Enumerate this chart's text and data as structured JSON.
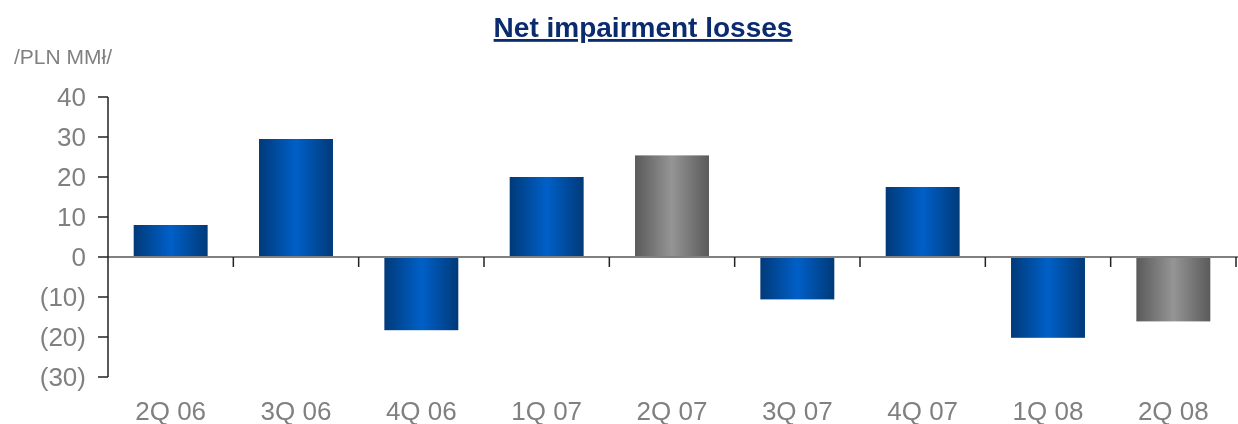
{
  "chart_data": {
    "type": "bar",
    "title": "Net impairment losses",
    "ylabel": "/PLN MMł/",
    "categories": [
      "2Q 06",
      "3Q 06",
      "4Q 06",
      "1Q 07",
      "2Q 07",
      "3Q 07",
      "4Q 07",
      "1Q 08",
      "2Q 08"
    ],
    "values": [
      8,
      29.5,
      -18.3,
      20,
      25.4,
      -10.6,
      17.5,
      -20.2,
      -16.1
    ],
    "colors": [
      "#0060c8",
      "#0060c8",
      "#0060c8",
      "#0060c8",
      "#959595",
      "#0060c8",
      "#0060c8",
      "#0060c8",
      "#959595"
    ],
    "ylim": [
      -30,
      40
    ],
    "yticks": [
      {
        "value": -30,
        "label": "(30)"
      },
      {
        "value": -20,
        "label": "(20)"
      },
      {
        "value": -10,
        "label": "(10)"
      },
      0,
      10,
      20,
      30,
      40
    ]
  }
}
